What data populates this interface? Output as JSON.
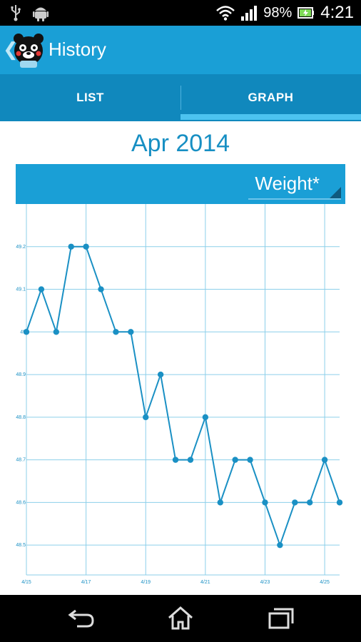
{
  "status_bar": {
    "battery": "98%",
    "time": "4:21",
    "icons": [
      "usb-icon",
      "android-icon",
      "wifi-icon",
      "signal-icon",
      "battery-icon"
    ]
  },
  "app_bar": {
    "title": "History",
    "back_icon": "chevron-left-icon",
    "app_icon": "bear-mascot-icon"
  },
  "tabs": [
    {
      "label": "LIST",
      "selected": false
    },
    {
      "label": "GRAPH",
      "selected": true
    }
  ],
  "month_label": "Apr 2014",
  "metric_selector": {
    "label": "Weight*"
  },
  "colors": {
    "accent": "#1a9fd6",
    "tab_bar": "#1088bd",
    "indicator": "#4cc3f0",
    "line": "#1a90c4",
    "grid": "#8ccfea"
  },
  "chart_data": {
    "type": "line",
    "title": "",
    "xlabel": "",
    "ylabel": "",
    "x_ticks": [
      "4/15",
      "4/17",
      "4/19",
      "4/21",
      "4/23",
      "4/25"
    ],
    "y_ticks": [
      "48.5",
      "48.6",
      "48.7",
      "48.8",
      "48.9",
      "49",
      "49.1",
      "49.2"
    ],
    "ylim": [
      48.43,
      49.3
    ],
    "grid": true,
    "series": [
      {
        "x": [
          "4/15",
          "4/15",
          "4/16",
          "4/16",
          "4/17",
          "4/17",
          "4/18",
          "4/18",
          "4/19",
          "4/19",
          "4/20",
          "4/20",
          "4/21",
          "4/21",
          "4/22",
          "4/22",
          "4/23",
          "4/23",
          "4/24",
          "4/24",
          "4/25",
          "4/25"
        ],
        "values": [
          49.0,
          49.1,
          49.0,
          49.2,
          49.2,
          49.1,
          49.0,
          49.0,
          48.8,
          48.9,
          48.7,
          48.7,
          48.8,
          48.6,
          48.7,
          48.7,
          48.6,
          48.5,
          48.6,
          48.6,
          48.7,
          48.6
        ]
      }
    ]
  },
  "nav_bar": {
    "icons": [
      "back-icon",
      "home-icon",
      "recent-apps-icon"
    ]
  }
}
